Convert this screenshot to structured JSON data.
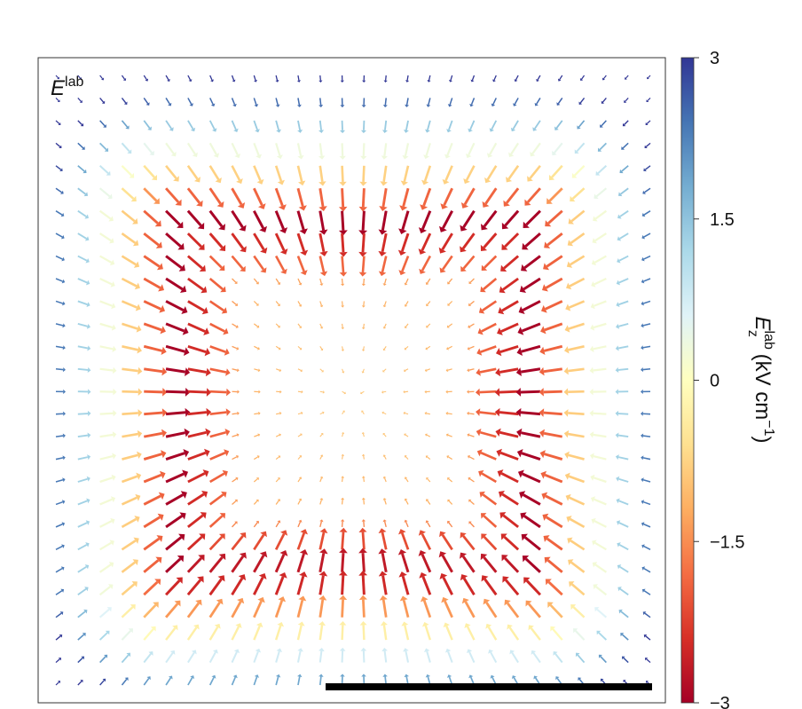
{
  "chart_data": {
    "type": "quiver",
    "panel_label": {
      "base": "E",
      "superscript": "lab"
    },
    "colorbar": {
      "title": {
        "base": "E",
        "subscript": "z",
        "superscript": "lab",
        "unit": " (kV cm",
        "unit_power": "−1",
        "close": ")"
      },
      "min": -3,
      "max": 3,
      "ticks": [
        {
          "value": 3,
          "label": "3"
        },
        {
          "value": 1.5,
          "label": "1.5"
        },
        {
          "value": 0,
          "label": "0"
        },
        {
          "value": -1.5,
          "label": "−1.5"
        },
        {
          "value": -3,
          "label": "−3"
        }
      ],
      "colormap": [
        "#a50026",
        "#d73027",
        "#f46d43",
        "#fdae61",
        "#fee090",
        "#ffffbf",
        "#e0f3f8",
        "#abd9e9",
        "#74add1",
        "#4575b4",
        "#313695"
      ]
    },
    "field": {
      "grid_columns": 28,
      "grid_rows": 28,
      "description_of_pattern": "square region; in-plane arrows point inward from all sides; Ez is near -3 inside and along the inner edge, rising to +3 outside the square"
    },
    "scale_bar": {
      "present": true,
      "label": ""
    },
    "grid": false,
    "legend": "none"
  }
}
